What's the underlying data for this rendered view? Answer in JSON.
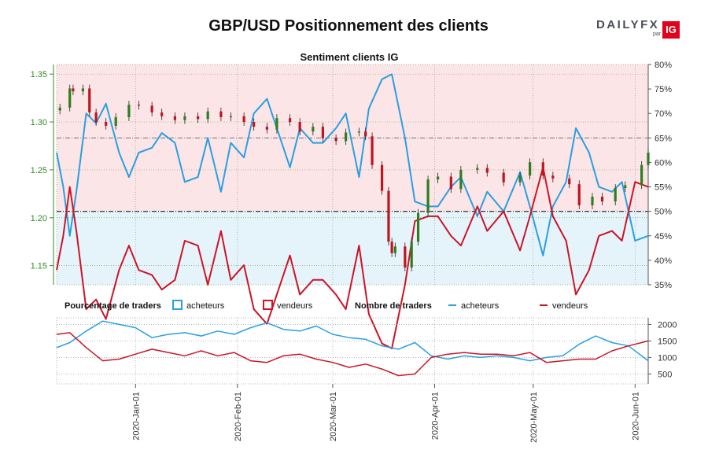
{
  "header": {
    "title": "GBP/USD Positionnement des clients",
    "brand_word": "DAILYFX",
    "brand_small": "par",
    "brand_badge": "IG"
  },
  "chart_data": [
    {
      "type": "line",
      "subtitle": "Sentiment clients IG",
      "x_tick_labels": [
        "2020-Jan-01",
        "2020-Feb-01",
        "2020-Mar-01",
        "2020-Apr-01",
        "2020-May-01",
        "2020-Jun-01"
      ],
      "x_start": "2019-12-08",
      "x_end": "2020-06-05",
      "price_axis": {
        "side": "left",
        "ylim": [
          1.13,
          1.36
        ],
        "ticks": [
          1.15,
          1.2,
          1.25,
          1.3,
          1.35
        ],
        "tick_labels": [
          "1.15",
          "1.20",
          "1.25",
          "1.30",
          "1.35"
        ]
      },
      "sentiment_axis": {
        "side": "right",
        "ylim": [
          35,
          80
        ],
        "ticks": [
          35,
          40,
          45,
          50,
          55,
          60,
          65,
          70,
          75,
          80
        ],
        "tick_labels": [
          "35%",
          "40%",
          "45%",
          "50%",
          "55%",
          "60%",
          "65%",
          "70%",
          "75%",
          "80%"
        ]
      },
      "reference_lines": [
        {
          "value": 50,
          "axis": "sentiment"
        },
        {
          "value": 65,
          "axis": "sentiment"
        }
      ],
      "price_ohlc_close": {
        "dates": [
          "2019-12-09",
          "2019-12-12",
          "2019-12-13",
          "2019-12-16",
          "2019-12-18",
          "2019-12-20",
          "2019-12-23",
          "2019-12-26",
          "2019-12-30",
          "2020-01-02",
          "2020-01-06",
          "2020-01-09",
          "2020-01-13",
          "2020-01-16",
          "2020-01-20",
          "2020-01-23",
          "2020-01-27",
          "2020-01-30",
          "2020-02-03",
          "2020-02-06",
          "2020-02-10",
          "2020-02-13",
          "2020-02-17",
          "2020-02-20",
          "2020-02-24",
          "2020-02-27",
          "2020-03-02",
          "2020-03-05",
          "2020-03-09",
          "2020-03-11",
          "2020-03-13",
          "2020-03-16",
          "2020-03-18",
          "2020-03-19",
          "2020-03-20",
          "2020-03-23",
          "2020-03-25",
          "2020-03-27",
          "2020-03-30",
          "2020-04-02",
          "2020-04-06",
          "2020-04-09",
          "2020-04-14",
          "2020-04-17",
          "2020-04-22",
          "2020-04-27",
          "2020-04-30",
          "2020-05-04",
          "2020-05-07",
          "2020-05-12",
          "2020-05-15",
          "2020-05-19",
          "2020-05-22",
          "2020-05-26",
          "2020-05-29",
          "2020-06-03",
          "2020-06-05"
        ],
        "close": [
          1.315,
          1.335,
          1.332,
          1.335,
          1.31,
          1.3,
          1.296,
          1.305,
          1.318,
          1.317,
          1.31,
          1.306,
          1.302,
          1.306,
          1.303,
          1.311,
          1.305,
          1.306,
          1.3,
          1.295,
          1.292,
          1.304,
          1.3,
          1.29,
          1.295,
          1.283,
          1.28,
          1.289,
          1.29,
          1.285,
          1.255,
          1.228,
          1.175,
          1.163,
          1.17,
          1.148,
          1.175,
          1.205,
          1.24,
          1.243,
          1.23,
          1.25,
          1.252,
          1.247,
          1.237,
          1.244,
          1.258,
          1.244,
          1.241,
          1.235,
          1.213,
          1.222,
          1.217,
          1.231,
          1.234,
          1.255,
          1.268
        ]
      },
      "series": [
        {
          "name": "acheteurs",
          "color": "#2a9fe0",
          "unit": "%",
          "dates": [
            "2019-12-08",
            "2019-12-10",
            "2019-12-12",
            "2019-12-14",
            "2019-12-17",
            "2019-12-20",
            "2019-12-23",
            "2019-12-27",
            "2019-12-30",
            "2020-01-02",
            "2020-01-06",
            "2020-01-09",
            "2020-01-13",
            "2020-01-16",
            "2020-01-20",
            "2020-01-23",
            "2020-01-27",
            "2020-01-30",
            "2020-02-03",
            "2020-02-06",
            "2020-02-10",
            "2020-02-13",
            "2020-02-17",
            "2020-02-20",
            "2020-02-24",
            "2020-02-27",
            "2020-03-02",
            "2020-03-05",
            "2020-03-09",
            "2020-03-12",
            "2020-03-16",
            "2020-03-19",
            "2020-03-23",
            "2020-03-26",
            "2020-03-30",
            "2020-04-02",
            "2020-04-06",
            "2020-04-09",
            "2020-04-14",
            "2020-04-17",
            "2020-04-22",
            "2020-04-27",
            "2020-04-30",
            "2020-05-04",
            "2020-05-07",
            "2020-05-11",
            "2020-05-14",
            "2020-05-18",
            "2020-05-21",
            "2020-05-25",
            "2020-05-28",
            "2020-06-01",
            "2020-06-05"
          ],
          "values": [
            62,
            55,
            45,
            54,
            70,
            68,
            72,
            62,
            57,
            62,
            63,
            66,
            64,
            56,
            57,
            65,
            54,
            64,
            61,
            70,
            73,
            67,
            59,
            67,
            64,
            64,
            67,
            70,
            57,
            71,
            77,
            78,
            65,
            52,
            51,
            51,
            55,
            57,
            49,
            54,
            50,
            58,
            51,
            41,
            51,
            56,
            67,
            62,
            55,
            54,
            56,
            44,
            45
          ]
        },
        {
          "name": "vendeurs",
          "color": "#cc1426",
          "unit": "%",
          "dates": [
            "2019-12-08",
            "2019-12-10",
            "2019-12-12",
            "2019-12-14",
            "2019-12-17",
            "2019-12-20",
            "2019-12-23",
            "2019-12-27",
            "2019-12-30",
            "2020-01-02",
            "2020-01-06",
            "2020-01-09",
            "2020-01-13",
            "2020-01-16",
            "2020-01-20",
            "2020-01-23",
            "2020-01-27",
            "2020-01-30",
            "2020-02-03",
            "2020-02-06",
            "2020-02-10",
            "2020-02-13",
            "2020-02-17",
            "2020-02-20",
            "2020-02-24",
            "2020-02-27",
            "2020-03-02",
            "2020-03-05",
            "2020-03-09",
            "2020-03-12",
            "2020-03-16",
            "2020-03-19",
            "2020-03-23",
            "2020-03-26",
            "2020-03-30",
            "2020-04-02",
            "2020-04-06",
            "2020-04-09",
            "2020-04-14",
            "2020-04-17",
            "2020-04-22",
            "2020-04-27",
            "2020-04-30",
            "2020-05-04",
            "2020-05-07",
            "2020-05-11",
            "2020-05-14",
            "2020-05-18",
            "2020-05-21",
            "2020-05-25",
            "2020-05-28",
            "2020-06-01",
            "2020-06-05"
          ],
          "values": [
            38,
            45,
            55,
            46,
            30,
            32,
            28,
            38,
            43,
            38,
            37,
            34,
            36,
            44,
            43,
            35,
            46,
            36,
            39,
            30,
            27,
            33,
            41,
            33,
            36,
            36,
            33,
            30,
            43,
            29,
            23,
            22,
            35,
            48,
            49,
            49,
            45,
            43,
            51,
            46,
            50,
            42,
            49,
            59,
            49,
            44,
            33,
            38,
            45,
            46,
            44,
            56,
            55
          ]
        }
      ]
    },
    {
      "type": "line",
      "x_start": "2019-12-08",
      "x_end": "2020-06-05",
      "ylim": [
        200,
        2200
      ],
      "ticks": [
        500,
        1000,
        1500,
        2000
      ],
      "tick_labels": [
        "500",
        "1000",
        "1500",
        "2000"
      ],
      "legend": {
        "pct_title": "Pourcentage de traders",
        "pct_buy": "acheteurs",
        "pct_sell": "vendeurs",
        "count_title": "Nombre de traders",
        "count_buy": "acheteurs",
        "count_sell": "vendeurs"
      },
      "series": [
        {
          "name": "acheteurs",
          "color": "#2a9fe0",
          "dates": [
            "2019-12-08",
            "2019-12-12",
            "2019-12-17",
            "2019-12-22",
            "2019-12-27",
            "2020-01-01",
            "2020-01-06",
            "2020-01-11",
            "2020-01-16",
            "2020-01-21",
            "2020-01-26",
            "2020-01-31",
            "2020-02-05",
            "2020-02-10",
            "2020-02-15",
            "2020-02-20",
            "2020-02-25",
            "2020-03-01",
            "2020-03-06",
            "2020-03-11",
            "2020-03-16",
            "2020-03-21",
            "2020-03-26",
            "2020-03-31",
            "2020-04-05",
            "2020-04-10",
            "2020-04-15",
            "2020-04-20",
            "2020-04-25",
            "2020-04-30",
            "2020-05-05",
            "2020-05-10",
            "2020-05-15",
            "2020-05-20",
            "2020-05-25",
            "2020-05-30",
            "2020-06-05"
          ],
          "values": [
            1300,
            1450,
            1800,
            2100,
            2000,
            1900,
            1600,
            1700,
            1750,
            1650,
            1800,
            1700,
            1900,
            2050,
            1850,
            1800,
            1950,
            1700,
            1600,
            1550,
            1350,
            1250,
            1450,
            1050,
            950,
            1050,
            1000,
            1050,
            1000,
            900,
            1000,
            1050,
            1400,
            1650,
            1450,
            1350,
            900
          ]
        },
        {
          "name": "vendeurs",
          "color": "#cc1426",
          "dates": [
            "2019-12-08",
            "2019-12-12",
            "2019-12-17",
            "2019-12-22",
            "2019-12-27",
            "2020-01-01",
            "2020-01-06",
            "2020-01-11",
            "2020-01-16",
            "2020-01-21",
            "2020-01-26",
            "2020-01-31",
            "2020-02-05",
            "2020-02-10",
            "2020-02-15",
            "2020-02-20",
            "2020-02-25",
            "2020-03-01",
            "2020-03-06",
            "2020-03-11",
            "2020-03-16",
            "2020-03-21",
            "2020-03-26",
            "2020-03-31",
            "2020-04-05",
            "2020-04-10",
            "2020-04-15",
            "2020-04-20",
            "2020-04-25",
            "2020-04-30",
            "2020-05-05",
            "2020-05-10",
            "2020-05-15",
            "2020-05-20",
            "2020-05-25",
            "2020-05-30",
            "2020-06-05"
          ],
          "values": [
            1700,
            1750,
            1300,
            900,
            950,
            1100,
            1250,
            1150,
            1050,
            1200,
            1050,
            1150,
            900,
            850,
            1050,
            1100,
            950,
            850,
            700,
            800,
            650,
            450,
            500,
            1000,
            1100,
            1150,
            1100,
            1100,
            1050,
            1150,
            850,
            900,
            950,
            950,
            1200,
            1350,
            1500
          ]
        }
      ]
    }
  ]
}
